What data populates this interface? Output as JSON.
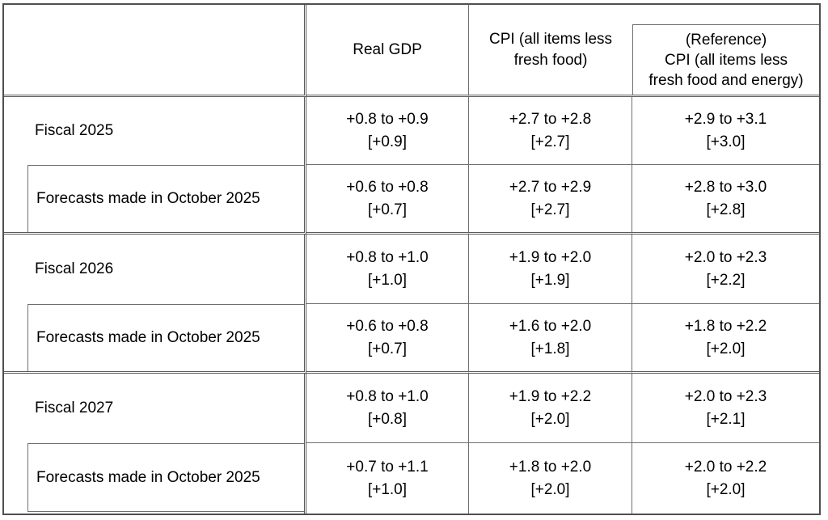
{
  "colors": {
    "background": "#ffffff",
    "text": "#000000",
    "border_heavy": "#5a5a5a",
    "border_thin": "#6f6f6f"
  },
  "header": {
    "col_labels_display": [
      "",
      "Real GDP",
      "CPI (all items less\nfresh food)",
      "(Reference)\nCPI (all items less\nfresh food and energy)"
    ]
  },
  "body": {
    "groups": [
      {
        "fiscal_label": "Fiscal 2025",
        "fiscal_cells": [
          {
            "range": "+0.8 to +0.9",
            "point": "[+0.9]"
          },
          {
            "range": "+2.7 to +2.8",
            "point": "[+2.7]"
          },
          {
            "range": "+2.9 to +3.1",
            "point": "[+3.0]"
          }
        ],
        "forecast_label": "Forecasts made in October 2025",
        "forecast_cells": [
          {
            "range": "+0.6 to +0.8",
            "point": "[+0.7]"
          },
          {
            "range": "+2.7 to +2.9",
            "point": "[+2.7]"
          },
          {
            "range": "+2.8 to +3.0",
            "point": "[+2.8]"
          }
        ]
      },
      {
        "fiscal_label": "Fiscal 2026",
        "fiscal_cells": [
          {
            "range": "+0.8 to +1.0",
            "point": "[+1.0]"
          },
          {
            "range": "+1.9 to +2.0",
            "point": "[+1.9]"
          },
          {
            "range": "+2.0 to +2.3",
            "point": "[+2.2]"
          }
        ],
        "forecast_label": "Forecasts made in October 2025",
        "forecast_cells": [
          {
            "range": "+0.6 to +0.8",
            "point": "[+0.7]"
          },
          {
            "range": "+1.6 to +2.0",
            "point": "[+1.8]"
          },
          {
            "range": "+1.8 to +2.2",
            "point": "[+2.0]"
          }
        ]
      },
      {
        "fiscal_label": "Fiscal 2027",
        "fiscal_cells": [
          {
            "range": "+0.8 to +1.0",
            "point": "[+0.8]"
          },
          {
            "range": "+1.9 to +2.2",
            "point": "[+2.0]"
          },
          {
            "range": "+2.0 to +2.3",
            "point": "[+2.1]"
          }
        ],
        "forecast_label": "Forecasts made in October 2025",
        "forecast_cells": [
          {
            "range": "+0.7 to +1.1",
            "point": "[+1.0]"
          },
          {
            "range": "+1.8 to +2.0",
            "point": "[+2.0]"
          },
          {
            "range": "+2.0 to +2.2",
            "point": "[+2.0]"
          }
        ]
      }
    ]
  },
  "chart_data": {
    "type": "table",
    "columns": [
      "",
      "Real GDP",
      "CPI (all items less fresh food)",
      "(Reference) CPI (all items less fresh food and energy)"
    ],
    "rows": [
      [
        "Fiscal 2025",
        "+0.8 to +0.9 [+0.9]",
        "+2.7 to +2.8 [+2.7]",
        "+2.9 to +3.1 [+3.0]"
      ],
      [
        "Forecasts made in October 2025",
        "+0.6 to +0.8 [+0.7]",
        "+2.7 to +2.9 [+2.7]",
        "+2.8 to +3.0 [+2.8]"
      ],
      [
        "Fiscal 2026",
        "+0.8 to +1.0 [+1.0]",
        "+1.9 to +2.0 [+1.9]",
        "+2.0 to +2.3 [+2.2]"
      ],
      [
        "Forecasts made in October 2025",
        "+0.6 to +0.8 [+0.7]",
        "+1.6 to +2.0 [+1.8]",
        "+1.8 to +2.2 [+2.0]"
      ],
      [
        "Fiscal 2027",
        "+0.8 to +1.0 [+0.8]",
        "+1.9 to +2.2 [+2.0]",
        "+2.0 to +2.3 [+2.1]"
      ],
      [
        "Forecasts made in October 2025",
        "+0.7 to +1.1 [+1.0]",
        "+1.8 to +2.0 [+2.0]",
        "+2.0 to +2.2 [+2.0]"
      ]
    ],
    "layout": {
      "grid": "full-borders",
      "heavy_separators_after_rows": [
        1,
        3
      ],
      "indented_rows": [
        1,
        3,
        5
      ],
      "bracket_values_are_second_line": true
    }
  }
}
